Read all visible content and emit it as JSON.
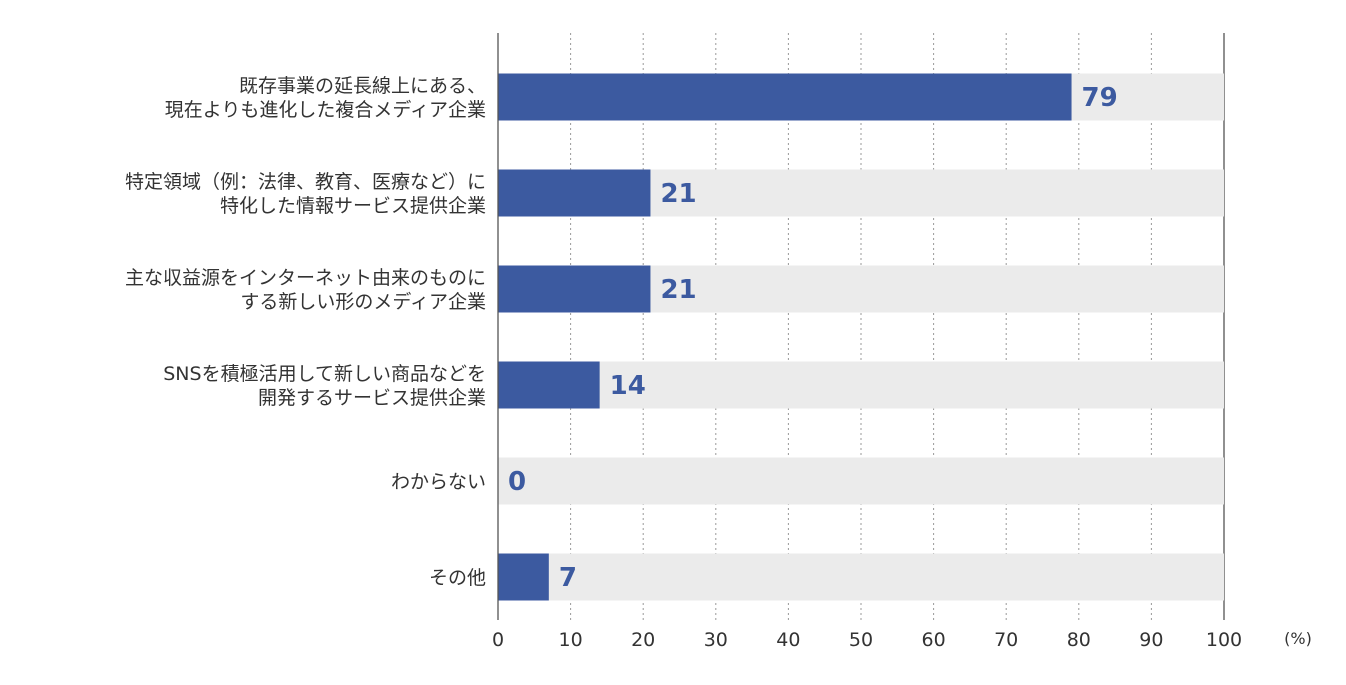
{
  "chart_data": {
    "type": "bar",
    "orientation": "horizontal",
    "categories": [
      [
        "既存事業の延長線上にある、",
        "現在よりも進化した複合メディア企業"
      ],
      [
        "特定領域（例：法律、教育、医療など）に",
        "特化した情報サービス提供企業"
      ],
      [
        "主な収益源をインターネット由来のものに",
        "する新しい形のメディア企業"
      ],
      [
        "SNSを積極活用して新しい商品などを",
        "開発するサービス提供企業"
      ],
      [
        "わからない"
      ],
      [
        "その他"
      ]
    ],
    "values": [
      79,
      21,
      21,
      14,
      0,
      7
    ],
    "value_labels": [
      "79",
      "21",
      "21",
      "14",
      "0",
      "7"
    ],
    "xlim": [
      0,
      100
    ],
    "xticks": [
      0,
      10,
      20,
      30,
      40,
      50,
      60,
      70,
      80,
      90,
      100
    ],
    "xtick_labels": [
      "0",
      "10",
      "20",
      "30",
      "40",
      "50",
      "60",
      "70",
      "80",
      "90",
      "100"
    ],
    "unit_label": "(%)",
    "grid": "vertical dotted",
    "colors": {
      "bar": "#3c5aa0",
      "track": "#ebebeb",
      "value_text": "#3c5aa0",
      "axis": "#555555",
      "grid": "#999999"
    }
  }
}
